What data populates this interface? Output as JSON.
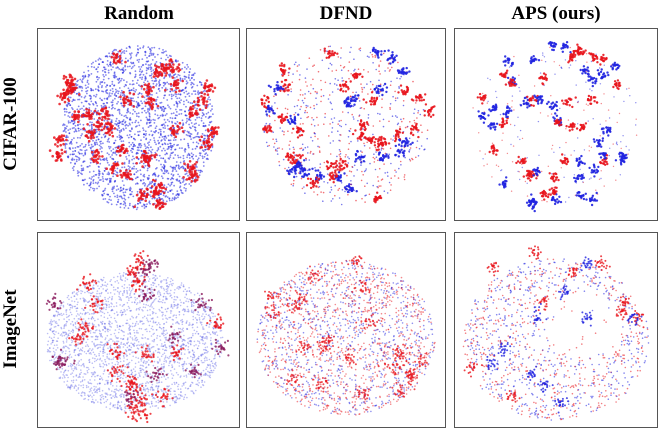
{
  "figure": {
    "columns": [
      "Random",
      "DFND",
      "APS (ours)"
    ],
    "rows": [
      "CIFAR-100",
      "ImageNet"
    ]
  },
  "colors": {
    "class_a": "#e8141c",
    "class_b": "#1f22e0"
  },
  "chart_data": {
    "type": "scatter",
    "description_columns": [
      "Random",
      "DFND",
      "APS (ours)"
    ],
    "description_rows": [
      "CIFAR-100",
      "ImageNet"
    ],
    "series": [
      {
        "name": "red embeddings",
        "color": "#e8141c"
      },
      {
        "name": "blue embeddings",
        "color": "#1f22e0"
      }
    ],
    "panels": [
      {
        "row": "CIFAR-100",
        "column": "Random",
        "pattern": "red-clusters-over-dense-blue-cloud",
        "seed": 11
      },
      {
        "row": "CIFAR-100",
        "column": "DFND",
        "pattern": "mixed-red-blue-clusters-with-scatter",
        "seed": 23
      },
      {
        "row": "CIFAR-100",
        "column": "APS (ours)",
        "pattern": "well-separated-mixed-clusters",
        "seed": 37
      },
      {
        "row": "ImageNet",
        "column": "Random",
        "pattern": "diffuse-blue-with-red-clumps",
        "seed": 41
      },
      {
        "row": "ImageNet",
        "column": "DFND",
        "pattern": "diffuse-mixed-cloud",
        "seed": 53
      },
      {
        "row": "ImageNet",
        "column": "APS (ours)",
        "pattern": "sparse-mixed-with-gaps",
        "seed": 67
      }
    ],
    "xlabel": "",
    "ylabel": "",
    "axes": "hidden"
  }
}
